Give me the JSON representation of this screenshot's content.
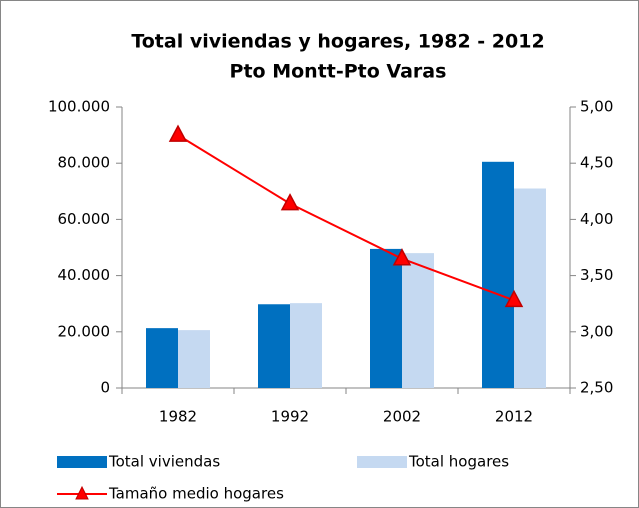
{
  "chart_data": {
    "type": "bar",
    "title": "Total viviendas y hogares, 1982 - 2012",
    "subtitle": "Pto Montt-Pto Varas",
    "categories": [
      "1982",
      "1992",
      "2002",
      "2012"
    ],
    "series": [
      {
        "name": "Total viviendas",
        "color": "#0070c0",
        "values": [
          21300,
          29800,
          49500,
          80500
        ],
        "axis": "y"
      },
      {
        "name": "Total hogares",
        "color": "#c5d9f1",
        "values": [
          20600,
          30200,
          48000,
          71000
        ],
        "axis": "y"
      },
      {
        "name": "Tamaño medio hogares",
        "type": "line",
        "color": "#ff0000",
        "marker_color": "#c00000",
        "values": [
          4.75,
          4.14,
          3.65,
          3.28
        ],
        "axis": "y2"
      }
    ],
    "ylim": [
      0,
      100000
    ],
    "yticks": [
      0,
      {
        "value": 20000,
        "label": "20.000"
      },
      {
        "value": 40000,
        "label": "40.000"
      },
      {
        "value": 60000,
        "label": "60.000"
      },
      {
        "value": 80000,
        "label": "80.000"
      },
      {
        "value": 100000,
        "label": "100.000"
      }
    ],
    "y2lim": [
      2.5,
      5.0
    ],
    "y2ticks": [
      {
        "value": 2.5,
        "label": "2,50"
      },
      {
        "value": 3.0,
        "label": "3,00"
      },
      {
        "value": 3.5,
        "label": "3,50"
      },
      {
        "value": 4.0,
        "label": "4,00"
      },
      {
        "value": 4.5,
        "label": "4,50"
      },
      {
        "value": 5.0,
        "label": "5,00"
      }
    ],
    "grid": false
  }
}
